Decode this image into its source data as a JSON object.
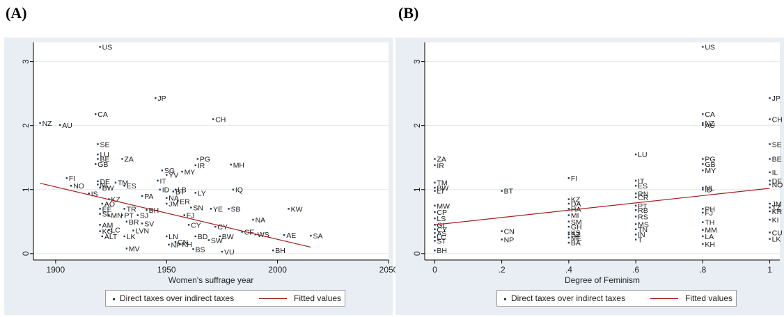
{
  "panels": [
    {
      "label": "(A)"
    },
    {
      "label": "(B)"
    }
  ],
  "colors": {
    "points": "#1f3b5c",
    "fit": "#a31f1f",
    "background": "#e8eef3",
    "plot": "#ffffff",
    "grid": "#e3e8ec"
  },
  "chart_data": [
    {
      "type": "scatter",
      "xlabel": "Women's suffrage year",
      "ylabel": "",
      "xlim": [
        1890,
        2050
      ],
      "ylim": [
        -0.1,
        3.3
      ],
      "xticks": [
        1900,
        1950,
        2000,
        2050
      ],
      "yticks": [
        0,
        1,
        2,
        3
      ],
      "grid": true,
      "legend": {
        "position": "bottom-center",
        "entries": [
          "Direct taxes over indirect taxes",
          "Fitted values"
        ]
      },
      "series": [
        {
          "name": "Direct taxes over indirect taxes",
          "points": [
            {
              "x": 1920,
              "y": 3.23,
              "label": "US"
            },
            {
              "x": 1945,
              "y": 2.43,
              "label": "JP"
            },
            {
              "x": 1918,
              "y": 2.18,
              "label": "CA"
            },
            {
              "x": 1971,
              "y": 2.1,
              "label": "CH"
            },
            {
              "x": 1893,
              "y": 2.04,
              "label": "NZ"
            },
            {
              "x": 1902,
              "y": 2.01,
              "label": "AU"
            },
            {
              "x": 1919,
              "y": 1.71,
              "label": "SE"
            },
            {
              "x": 1919,
              "y": 1.55,
              "label": "LU"
            },
            {
              "x": 1919,
              "y": 1.48,
              "label": "BE"
            },
            {
              "x": 1930,
              "y": 1.48,
              "label": "ZA"
            },
            {
              "x": 1964,
              "y": 1.48,
              "label": "PG"
            },
            {
              "x": 1918,
              "y": 1.4,
              "label": "GB"
            },
            {
              "x": 1963,
              "y": 1.38,
              "label": "IR"
            },
            {
              "x": 1979,
              "y": 1.39,
              "label": "MH"
            },
            {
              "x": 1948,
              "y": 1.3,
              "label": "SG"
            },
            {
              "x": 1957,
              "y": 1.28,
              "label": "MY"
            },
            {
              "x": 1950,
              "y": 1.23,
              "label": "YV"
            },
            {
              "x": 1905,
              "y": 1.18,
              "label": "FI"
            },
            {
              "x": 1946,
              "y": 1.14,
              "label": "IT"
            },
            {
              "x": 1919,
              "y": 1.13,
              "label": "DE"
            },
            {
              "x": 1927,
              "y": 1.11,
              "label": "TM"
            },
            {
              "x": 1919,
              "y": 1.08,
              "label": "NL"
            },
            {
              "x": 1907,
              "y": 1.06,
              "label": "NO"
            },
            {
              "x": 1931,
              "y": 1.06,
              "label": "ES"
            },
            {
              "x": 1920,
              "y": 1.03,
              "label": "BW"
            },
            {
              "x": 1980,
              "y": 1.0,
              "label": "IQ"
            },
            {
              "x": 1947,
              "y": 1.0,
              "label": "ID"
            },
            {
              "x": 1954,
              "y": 1.0,
              "label": "LB"
            },
            {
              "x": 1953,
              "y": 0.97,
              "label": "BT"
            },
            {
              "x": 1963,
              "y": 0.95,
              "label": "LY"
            },
            {
              "x": 1915,
              "y": 0.94,
              "label": "IS"
            },
            {
              "x": 1939,
              "y": 0.9,
              "label": "PA"
            },
            {
              "x": 1950,
              "y": 0.87,
              "label": "NA"
            },
            {
              "x": 1924,
              "y": 0.85,
              "label": "KZ"
            },
            {
              "x": 1955,
              "y": 0.82,
              "label": "ER"
            },
            {
              "x": 1921,
              "y": 0.78,
              "label": "AO"
            },
            {
              "x": 1950,
              "y": 0.78,
              "label": "JM"
            },
            {
              "x": 1961,
              "y": 0.72,
              "label": "SN"
            },
            {
              "x": 1970,
              "y": 0.7,
              "label": "YE"
            },
            {
              "x": 1978,
              "y": 0.7,
              "label": "SB"
            },
            {
              "x": 2005,
              "y": 0.7,
              "label": "KW"
            },
            {
              "x": 1920,
              "y": 0.7,
              "label": "EE"
            },
            {
              "x": 1931,
              "y": 0.7,
              "label": "TR"
            },
            {
              "x": 1941,
              "y": 0.68,
              "label": "BH"
            },
            {
              "x": 1958,
              "y": 0.6,
              "label": "FJ"
            },
            {
              "x": 1920,
              "y": 0.62,
              "label": "SL"
            },
            {
              "x": 1924,
              "y": 0.6,
              "label": "MN"
            },
            {
              "x": 1930,
              "y": 0.6,
              "label": "PT"
            },
            {
              "x": 1937,
              "y": 0.6,
              "label": "SJ"
            },
            {
              "x": 1989,
              "y": 0.53,
              "label": "NA"
            },
            {
              "x": 1932,
              "y": 0.5,
              "label": "BR"
            },
            {
              "x": 1939,
              "y": 0.47,
              "label": "SV"
            },
            {
              "x": 1920,
              "y": 0.45,
              "label": "AM"
            },
            {
              "x": 1960,
              "y": 0.45,
              "label": "CY"
            },
            {
              "x": 1972,
              "y": 0.42,
              "label": "CY"
            },
            {
              "x": 1924,
              "y": 0.37,
              "label": "LC"
            },
            {
              "x": 1935,
              "y": 0.36,
              "label": "LVN"
            },
            {
              "x": 1920,
              "y": 0.35,
              "label": "KG"
            },
            {
              "x": 1984,
              "y": 0.34,
              "label": "CF"
            },
            {
              "x": 1990,
              "y": 0.3,
              "label": "WS"
            },
            {
              "x": 2003,
              "y": 0.29,
              "label": "AE"
            },
            {
              "x": 2015,
              "y": 0.28,
              "label": "SA"
            },
            {
              "x": 1921,
              "y": 0.27,
              "label": "ALT"
            },
            {
              "x": 1931,
              "y": 0.27,
              "label": "LK"
            },
            {
              "x": 1950,
              "y": 0.27,
              "label": "LN"
            },
            {
              "x": 1963,
              "y": 0.27,
              "label": "BD"
            },
            {
              "x": 1974,
              "y": 0.27,
              "label": "BW"
            },
            {
              "x": 1969,
              "y": 0.21,
              "label": "SW"
            },
            {
              "x": 1954,
              "y": 0.18,
              "label": "CN"
            },
            {
              "x": 1951,
              "y": 0.14,
              "label": "NP"
            },
            {
              "x": 1956,
              "y": 0.15,
              "label": "KH"
            },
            {
              "x": 1932,
              "y": 0.08,
              "label": "MV"
            },
            {
              "x": 1962,
              "y": 0.07,
              "label": "BS"
            },
            {
              "x": 1998,
              "y": 0.05,
              "label": "BH"
            },
            {
              "x": 1975,
              "y": 0.03,
              "label": "VU"
            }
          ]
        }
      ],
      "fit": {
        "name": "Fitted values",
        "x": [
          1893,
          2015
        ],
        "y": [
          1.1,
          0.1
        ]
      }
    },
    {
      "type": "scatter",
      "xlabel": "Degree of Feminism",
      "ylabel": "",
      "xlim": [
        -0.03,
        1.03
      ],
      "ylim": [
        -0.1,
        3.3
      ],
      "xticks": [
        0,
        0.2,
        0.4,
        0.6,
        0.8,
        1
      ],
      "xtick_labels": [
        "0",
        ".2",
        ".4",
        ".6",
        ".8",
        "1"
      ],
      "yticks": [
        0,
        1,
        2,
        3
      ],
      "grid": true,
      "legend": {
        "position": "bottom-center",
        "entries": [
          "Direct taxes over indirect taxes",
          "Fitted values"
        ]
      },
      "series": [
        {
          "name": "Direct taxes over indirect taxes",
          "points": [
            {
              "x": 0.8,
              "y": 3.23,
              "label": "US"
            },
            {
              "x": 1.0,
              "y": 2.43,
              "label": "JP"
            },
            {
              "x": 0.8,
              "y": 2.18,
              "label": "CA"
            },
            {
              "x": 1.0,
              "y": 2.1,
              "label": "CH"
            },
            {
              "x": 0.8,
              "y": 2.04,
              "label": "NZ"
            },
            {
              "x": 0.8,
              "y": 2.01,
              "label": "AU"
            },
            {
              "x": 1.0,
              "y": 1.71,
              "label": "SE"
            },
            {
              "x": 0.6,
              "y": 1.55,
              "label": "LU"
            },
            {
              "x": 0.0,
              "y": 1.48,
              "label": "ZA"
            },
            {
              "x": 0.8,
              "y": 1.48,
              "label": "PG"
            },
            {
              "x": 1.0,
              "y": 1.48,
              "label": "BE"
            },
            {
              "x": 0.8,
              "y": 1.4,
              "label": "GB"
            },
            {
              "x": 0.0,
              "y": 1.38,
              "label": "IR"
            },
            {
              "x": 0.8,
              "y": 1.3,
              "label": "MY"
            },
            {
              "x": 1.0,
              "y": 1.27,
              "label": "IL"
            },
            {
              "x": 0.4,
              "y": 1.18,
              "label": "FI"
            },
            {
              "x": 0.6,
              "y": 1.14,
              "label": "IT"
            },
            {
              "x": 1.0,
              "y": 1.14,
              "label": "DE"
            },
            {
              "x": 0.0,
              "y": 1.11,
              "label": "TM"
            },
            {
              "x": 1.0,
              "y": 1.08,
              "label": "NO"
            },
            {
              "x": 0.6,
              "y": 1.06,
              "label": "ES"
            },
            {
              "x": 0.8,
              "y": 1.03,
              "label": "NL"
            },
            {
              "x": 0.0,
              "y": 1.03,
              "label": "BW"
            },
            {
              "x": 0.8,
              "y": 1.0,
              "label": "ID"
            },
            {
              "x": 0.0,
              "y": 0.98,
              "label": "LT"
            },
            {
              "x": 0.2,
              "y": 0.98,
              "label": "BT"
            },
            {
              "x": 0.6,
              "y": 0.94,
              "label": "RN"
            },
            {
              "x": 0.6,
              "y": 0.88,
              "label": "CR"
            },
            {
              "x": 0.4,
              "y": 0.85,
              "label": "KZ"
            },
            {
              "x": 0.4,
              "y": 0.78,
              "label": "DA"
            },
            {
              "x": 1.0,
              "y": 0.78,
              "label": "JM"
            },
            {
              "x": 0.0,
              "y": 0.75,
              "label": "MW"
            },
            {
              "x": 0.6,
              "y": 0.75,
              "label": "PT"
            },
            {
              "x": 1.0,
              "y": 0.72,
              "label": "TZ"
            },
            {
              "x": 0.4,
              "y": 0.7,
              "label": "HA"
            },
            {
              "x": 0.8,
              "y": 0.7,
              "label": "PH"
            },
            {
              "x": 0.6,
              "y": 0.68,
              "label": "RB"
            },
            {
              "x": 1.0,
              "y": 0.66,
              "label": "KR"
            },
            {
              "x": 0.0,
              "y": 0.65,
              "label": "CP"
            },
            {
              "x": 0.8,
              "y": 0.64,
              "label": "FJ"
            },
            {
              "x": 0.4,
              "y": 0.6,
              "label": "MI"
            },
            {
              "x": 0.6,
              "y": 0.58,
              "label": "RS"
            },
            {
              "x": 0.0,
              "y": 0.55,
              "label": "LS"
            },
            {
              "x": 1.0,
              "y": 0.53,
              "label": "KI"
            },
            {
              "x": 0.4,
              "y": 0.5,
              "label": "SM"
            },
            {
              "x": 0.8,
              "y": 0.49,
              "label": "TH"
            },
            {
              "x": 0.6,
              "y": 0.46,
              "label": "MS"
            },
            {
              "x": 0.0,
              "y": 0.45,
              "label": "GL"
            },
            {
              "x": 0.4,
              "y": 0.42,
              "label": "GH"
            },
            {
              "x": 0.6,
              "y": 0.38,
              "label": "TN"
            },
            {
              "x": 0.0,
              "y": 0.38,
              "label": "CY"
            },
            {
              "x": 0.8,
              "y": 0.37,
              "label": "MM"
            },
            {
              "x": 0.2,
              "y": 0.35,
              "label": "CN"
            },
            {
              "x": 0.4,
              "y": 0.33,
              "label": "KS"
            },
            {
              "x": 1.0,
              "y": 0.33,
              "label": "CU"
            },
            {
              "x": 0.0,
              "y": 0.32,
              "label": "AS"
            },
            {
              "x": 0.4,
              "y": 0.3,
              "label": "SZ"
            },
            {
              "x": 0.6,
              "y": 0.3,
              "label": "IN"
            },
            {
              "x": 0.8,
              "y": 0.27,
              "label": "LA"
            },
            {
              "x": 0.0,
              "y": 0.26,
              "label": "LC"
            },
            {
              "x": 0.4,
              "y": 0.25,
              "label": "ME"
            },
            {
              "x": 1.0,
              "y": 0.23,
              "label": "LK"
            },
            {
              "x": 0.2,
              "y": 0.22,
              "label": "NP"
            },
            {
              "x": 0.6,
              "y": 0.22,
              "label": "T"
            },
            {
              "x": 0.0,
              "y": 0.2,
              "label": "ST"
            },
            {
              "x": 0.4,
              "y": 0.17,
              "label": "BA"
            },
            {
              "x": 0.8,
              "y": 0.15,
              "label": "KH"
            },
            {
              "x": 0.0,
              "y": 0.05,
              "label": "BH"
            }
          ]
        }
      ],
      "fit": {
        "name": "Fitted values",
        "x": [
          0,
          1
        ],
        "y": [
          0.45,
          1.02
        ]
      }
    }
  ]
}
